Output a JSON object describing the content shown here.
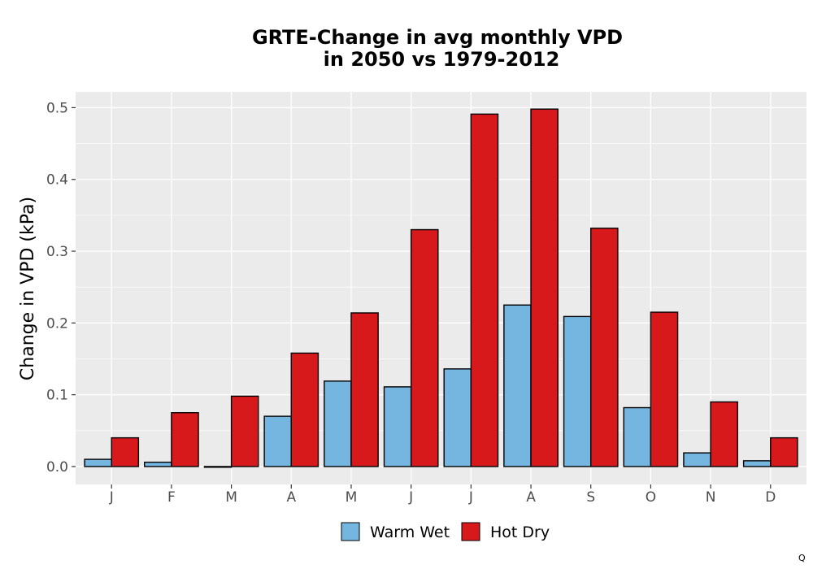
{
  "chart_data": {
    "type": "bar",
    "title_lines": [
      "GRTE-Change in avg monthly VPD",
      "in 2050 vs 1979-2012"
    ],
    "xlabel": "",
    "ylabel": "Change in VPD (kPa)",
    "categories": [
      "J",
      "F",
      "M",
      "A",
      "M",
      "J",
      "J",
      "A",
      "S",
      "O",
      "N",
      "D"
    ],
    "ylim": [
      -0.025,
      0.522
    ],
    "yticks": [
      0.0,
      0.1,
      0.2,
      0.3,
      0.4,
      0.5
    ],
    "ytick_labels": [
      "0.0",
      "0.1",
      "0.2",
      "0.3",
      "0.4",
      "0.5"
    ],
    "grid": true,
    "legend_position": "bottom",
    "series": [
      {
        "name": "Warm Wet",
        "color": "#74b6e0",
        "values": [
          0.01,
          0.006,
          -0.001,
          0.07,
          0.119,
          0.111,
          0.136,
          0.225,
          0.209,
          0.082,
          0.019,
          0.008
        ]
      },
      {
        "name": "Hot Dry",
        "color": "#d7191c",
        "values": [
          0.04,
          0.075,
          0.098,
          0.158,
          0.214,
          0.33,
          0.491,
          0.498,
          0.332,
          0.215,
          0.09,
          0.04
        ]
      }
    ],
    "corner_label": "Q"
  }
}
